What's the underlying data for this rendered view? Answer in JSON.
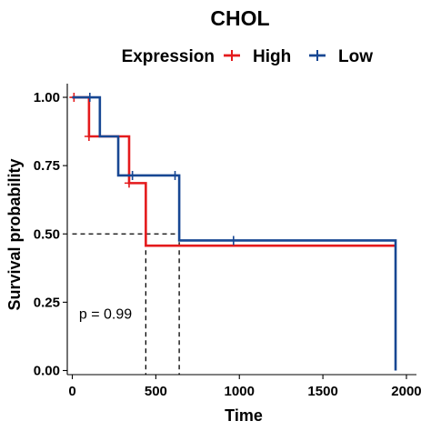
{
  "chart_data": {
    "type": "line",
    "subtype": "kaplan-meier",
    "title": "CHOL",
    "legend": {
      "title": "Expression",
      "position": "top"
    },
    "xlabel": "Time",
    "ylabel": "Survival probability",
    "xlim": [
      -30,
      2060
    ],
    "ylim": [
      -0.015,
      1.05
    ],
    "x_ticks": [
      0,
      500,
      1000,
      1500,
      2000
    ],
    "x_tick_labels": [
      "0",
      "500",
      "1000",
      "1500",
      "2000"
    ],
    "y_ticks": [
      0,
      0.25,
      0.5,
      0.75,
      1.0
    ],
    "y_tick_labels": [
      "0.00",
      "0.25",
      "0.50",
      "0.75",
      "1.00"
    ],
    "pvalue_text": "p = 0.99",
    "pvalue_anchor": {
      "x": 40,
      "y": 0.19
    },
    "median_line": {
      "y": 0.5,
      "x_high": 440,
      "x_low": 640
    },
    "series": [
      {
        "name": "High",
        "color": "#e41a1c",
        "steps": [
          [
            0,
            1.0
          ],
          [
            100,
            0.857
          ],
          [
            340,
            0.686
          ],
          [
            440,
            0.457
          ],
          [
            1940,
            0.457
          ]
        ],
        "censored": [
          [
            10,
            1.0
          ],
          [
            100,
            0.857
          ],
          [
            340,
            0.686
          ]
        ]
      },
      {
        "name": "Low",
        "color": "#174793",
        "steps": [
          [
            0,
            1.0
          ],
          [
            165,
            0.857
          ],
          [
            275,
            0.714
          ],
          [
            640,
            0.476
          ],
          [
            1935,
            0.476
          ],
          [
            1935,
            0.0
          ]
        ],
        "censored": [
          [
            105,
            1.0
          ],
          [
            360,
            0.714
          ],
          [
            615,
            0.714
          ],
          [
            965,
            0.476
          ]
        ]
      }
    ],
    "grid": false
  }
}
